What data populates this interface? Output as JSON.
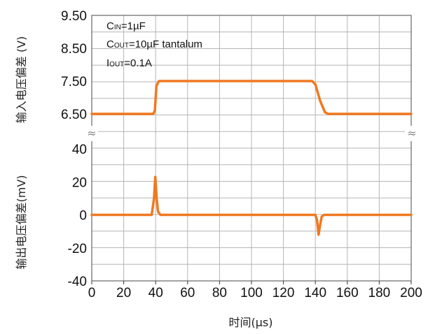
{
  "chart_data": {
    "type": "line",
    "xlabel": "时间(µs)",
    "ylabel_upper": "输入电压偏差 (V)",
    "ylabel_lower": "输出电压偏差(mV)",
    "xlim": [
      0,
      200
    ],
    "x_ticks": [
      "0",
      "20",
      "40",
      "60",
      "80",
      "100",
      "120",
      "140",
      "160",
      "180",
      "200"
    ],
    "upper_axis": {
      "ylim": [
        6.5,
        9.5
      ],
      "ticks": [
        "9.50",
        "8.50",
        "7.50",
        "6.50"
      ]
    },
    "lower_axis": {
      "ylim": [
        -40,
        40
      ],
      "ticks": [
        "40",
        "20",
        "0",
        "-20",
        "-40"
      ]
    },
    "grid": true,
    "axis_break_symbol": "≈",
    "annotations": [
      {
        "main": "C",
        "sub": "IN",
        "rest": "=1µF"
      },
      {
        "main": "C",
        "sub": "OUT",
        "rest": "=10µF tantalum"
      },
      {
        "main": "I",
        "sub": "OUT",
        "rest": "=0.1A"
      }
    ],
    "series": [
      {
        "axis": "upper",
        "color": "#F07820",
        "points": [
          [
            0,
            6.5
          ],
          [
            38.5,
            6.5
          ],
          [
            39.5,
            6.6
          ],
          [
            40.5,
            7.35
          ],
          [
            42,
            7.5
          ],
          [
            138,
            7.5
          ],
          [
            140,
            7.4
          ],
          [
            143,
            6.9
          ],
          [
            146,
            6.55
          ],
          [
            148,
            6.5
          ],
          [
            200,
            6.5
          ]
        ]
      },
      {
        "axis": "lower",
        "color": "#F07820",
        "points": [
          [
            0,
            0
          ],
          [
            37.5,
            0
          ],
          [
            39,
            10
          ],
          [
            39.8,
            23
          ],
          [
            40.6,
            10
          ],
          [
            41.5,
            2
          ],
          [
            43,
            0
          ],
          [
            140,
            0
          ],
          [
            141,
            -3
          ],
          [
            142,
            -12
          ],
          [
            143,
            -6
          ],
          [
            144,
            -1
          ],
          [
            145.5,
            0
          ],
          [
            200,
            0
          ]
        ]
      }
    ]
  }
}
